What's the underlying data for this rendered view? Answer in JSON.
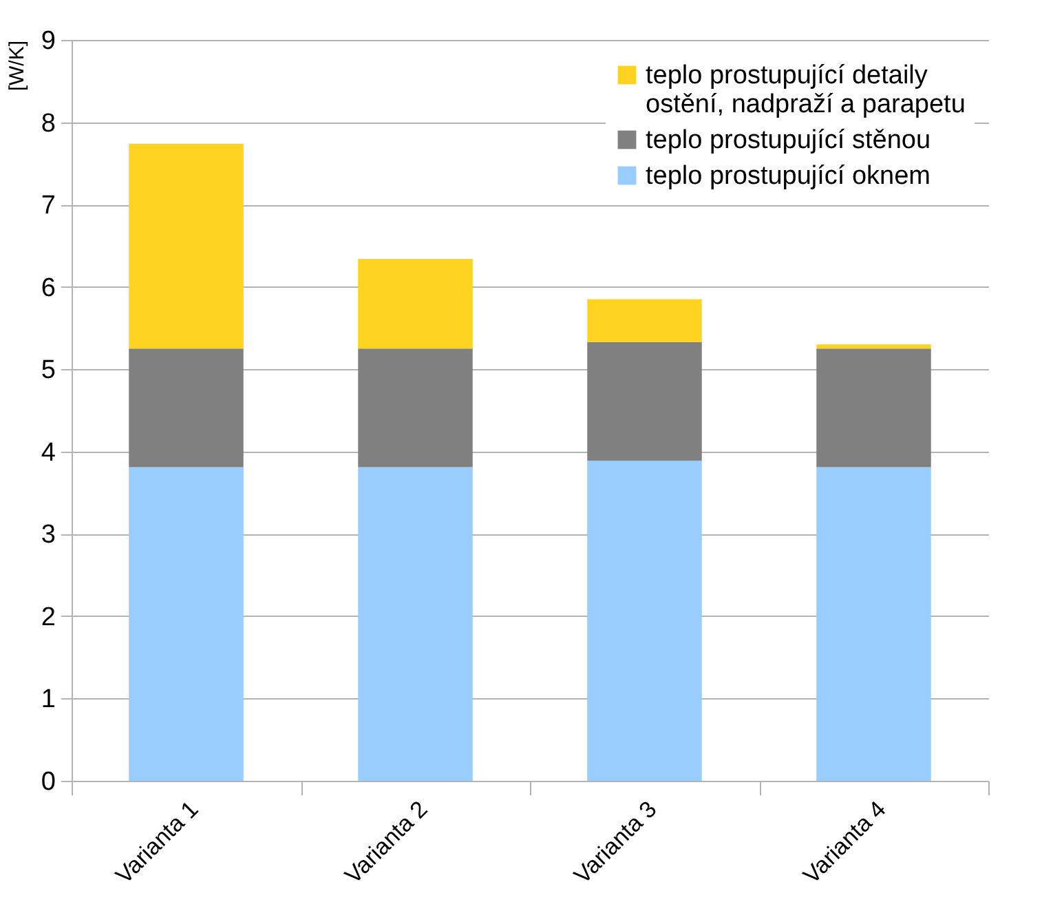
{
  "chart_data": {
    "type": "bar",
    "stacked": true,
    "ylabel": "[W/K]",
    "categories": [
      "Varianta 1",
      "Varianta 2",
      "Varianta 3",
      "Varianta 4"
    ],
    "series": [
      {
        "name": "teplo prostupující oknem",
        "color": "#99ccff",
        "values": [
          3.81,
          3.81,
          3.89,
          3.81
        ]
      },
      {
        "name": "teplo prostupující stěnou",
        "color": "#808080",
        "values": [
          1.44,
          1.44,
          1.44,
          1.44
        ]
      },
      {
        "name": "teplo prostupující detaily ostění, nadpraží a parapetu",
        "color": "#ffd320",
        "values": [
          2.49,
          1.09,
          0.52,
          0.05
        ]
      }
    ],
    "ylim": [
      0,
      9
    ],
    "yticks": [
      0,
      1,
      2,
      3,
      4,
      5,
      6,
      7,
      8,
      9
    ],
    "grid": "y",
    "legend": "top right"
  }
}
